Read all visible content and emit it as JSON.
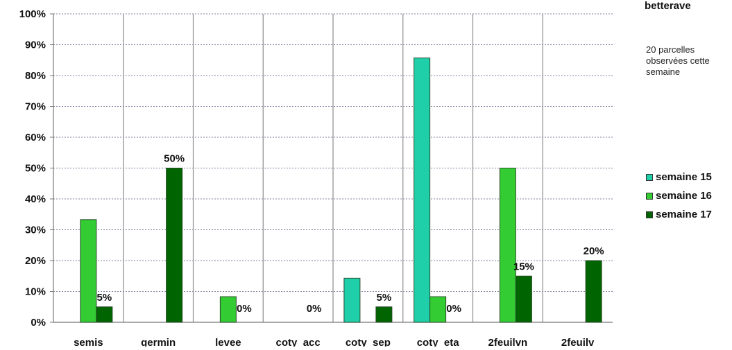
{
  "side_title": "betterave",
  "note": "20 parcelles observées cette semaine",
  "colors": {
    "s15": "#1fcfaa",
    "s16": "#33cc33",
    "s17": "#006400"
  },
  "chart_data": {
    "type": "bar",
    "categories": [
      "semis",
      "germin",
      "levee",
      "coty_acc",
      "coty_sep",
      "coty_eta",
      "2feuilvn",
      "2feuilv"
    ],
    "series": [
      {
        "name": "semaine 15",
        "values": [
          0,
          0,
          0,
          0,
          14.3,
          85.7,
          0,
          0
        ]
      },
      {
        "name": "semaine 16",
        "values": [
          33.3,
          0,
          8.3,
          0,
          0,
          8.3,
          50,
          0
        ]
      },
      {
        "name": "semaine 17",
        "values": [
          5,
          50,
          0,
          0,
          5,
          0,
          15,
          20
        ]
      }
    ],
    "data_labels": {
      "series": "semaine 17",
      "labels": [
        "5%",
        "50%",
        "0%",
        "0%",
        "5%",
        "0%",
        "15%",
        "20%"
      ]
    },
    "y_ticks": [
      "0%",
      "10%",
      "20%",
      "30%",
      "40%",
      "50%",
      "60%",
      "70%",
      "80%",
      "90%",
      "100%"
    ],
    "ylim": [
      0,
      100
    ],
    "grid": true,
    "legend_position": "right"
  }
}
